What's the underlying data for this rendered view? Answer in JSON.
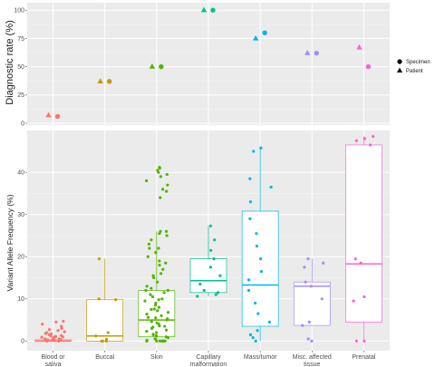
{
  "chart_data": [
    {
      "type": "scatter",
      "ylabel": "Diagnostic rate (%)",
      "ylim": [
        0,
        105
      ],
      "y_ticks": [
        0,
        25,
        50,
        75,
        100
      ],
      "categories": [
        "Blood or saliva",
        "Buccal",
        "Skin",
        "Capillary malformation",
        "Mass/tumor",
        "Misc. affected tissue",
        "Prenatal"
      ],
      "colors": [
        "#F8766D",
        "#C49A00",
        "#53B400",
        "#00C094",
        "#00B6EB",
        "#A58AFF",
        "#FB61D7"
      ],
      "series": [
        {
          "name": "Specimen",
          "shape": "circle",
          "values": [
            6,
            37,
            50,
            100,
            80,
            62,
            50
          ]
        },
        {
          "name": "Patient",
          "shape": "triangle",
          "values": [
            7,
            37,
            50,
            100,
            75,
            62,
            67
          ]
        }
      ],
      "legend": {
        "placement": "right",
        "entries": [
          "Specimen",
          "Patient"
        ]
      },
      "grid": true
    },
    {
      "type": "box",
      "ylabel": "Variant Allele Frequency (%)",
      "ylim": [
        -1,
        49.5
      ],
      "y_ticks": [
        0,
        10,
        20,
        30,
        40
      ],
      "categories": [
        "Blood or saliva",
        "Buccal",
        "Skin",
        "Capillary malformation",
        "Mass/tumor",
        "Misc. affected tissue",
        "Prenatal"
      ],
      "tick_labels": [
        [
          "Blood or",
          "saliva"
        ],
        [
          "Buccal"
        ],
        [
          "Skin"
        ],
        [
          "Capillary",
          "malformation"
        ],
        [
          "Mass/tumor"
        ],
        [
          "Misc. affected",
          "tissue"
        ],
        [
          "Prenatal"
        ]
      ],
      "colors": [
        "#F8766D",
        "#C49A00",
        "#53B400",
        "#00C094",
        "#00B6EB",
        "#A58AFF",
        "#FB61D7"
      ],
      "boxes": [
        {
          "q1": 0,
          "median": 0,
          "q3": 0.3,
          "whisker_low": 0,
          "whisker_high": 0.8
        },
        {
          "q1": 0,
          "median": 1.2,
          "q3": 9.8,
          "whisker_low": 0,
          "whisker_high": 19.5
        },
        {
          "q1": 1,
          "median": 5,
          "q3": 12,
          "whisker_low": 0,
          "whisker_high": 26
        },
        {
          "q1": 11.5,
          "median": 14.3,
          "q3": 19.5,
          "whisker_low": 10.6,
          "whisker_high": 27.3
        },
        {
          "q1": 3.5,
          "median": 13.3,
          "q3": 30.8,
          "whisker_low": 0,
          "whisker_high": 45.8
        },
        {
          "q1": 3.7,
          "median": 13,
          "q3": 14,
          "whisker_low": 3.7,
          "whisker_high": 19.5
        },
        {
          "q1": 4.5,
          "median": 18.3,
          "q3": 46.5,
          "whisker_low": 0,
          "whisker_high": 48.5
        }
      ],
      "points": [
        [
          0,
          0.1,
          0.2,
          0.3,
          0.4,
          0.5,
          0.6,
          0.7,
          0.8,
          0.9,
          1.0,
          1.1,
          1.2,
          1.3,
          1.5,
          1.7,
          2.0,
          2.2,
          2.5,
          3.0,
          3.5,
          4.0,
          4.5,
          4.7,
          0,
          0.2,
          0.5,
          1.0,
          1.8,
          2.7
        ],
        [
          0,
          0,
          0,
          0.4,
          1.2,
          2.0,
          9.8,
          10.0,
          19.5
        ],
        [
          0,
          0,
          0,
          0,
          0,
          0,
          0,
          0.2,
          0.5,
          0.8,
          1,
          1.3,
          1.6,
          2,
          2.3,
          2.6,
          3,
          3.3,
          3.6,
          4,
          4.3,
          4.6,
          5,
          5.3,
          5.6,
          6,
          6.4,
          6.8,
          7.2,
          7.6,
          8,
          8.5,
          9,
          9.5,
          10,
          10.5,
          11,
          11.5,
          12,
          12.5,
          13,
          14,
          15,
          16,
          17,
          18,
          19,
          20,
          21,
          22,
          23,
          24,
          25,
          25.5,
          26,
          0,
          1.5,
          3.5,
          5.5,
          7.5,
          9.8,
          12,
          15.5,
          18.5,
          22,
          26,
          34,
          36,
          38,
          39,
          39.5,
          40,
          40.5,
          41,
          41.2,
          37,
          35.5
        ],
        [
          10.6,
          11,
          11.5,
          12,
          13.5,
          15.5,
          17.5,
          19.5,
          21.5,
          24,
          27.3
        ],
        [
          0,
          0.8,
          1.5,
          2.5,
          4.5,
          6.5,
          9,
          12,
          14.5,
          16.5,
          19.5,
          22.5,
          25.5,
          29,
          33,
          36.5,
          38.5,
          45,
          45.8
        ],
        [
          0,
          0.5,
          3.7,
          4.5,
          10,
          13,
          14,
          17.5,
          18.5,
          19.5
        ],
        [
          0,
          0,
          9.5,
          10.5,
          18.5,
          19.5,
          46.5,
          47.5,
          48,
          48.5
        ]
      ]
    }
  ]
}
